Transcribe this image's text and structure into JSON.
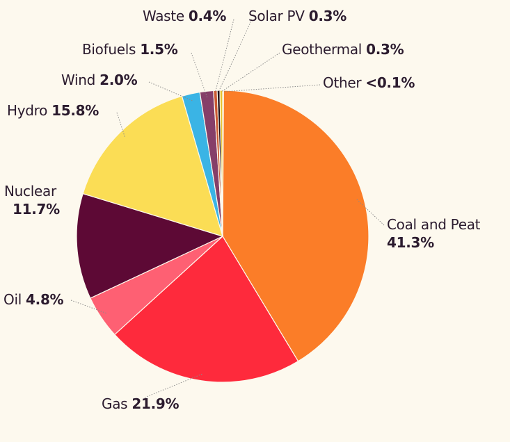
{
  "chart_data": {
    "type": "pie",
    "start_angle_deg": 90,
    "direction": "clockwise",
    "slices": [
      {
        "label": "Other",
        "display": "<0.1%",
        "value": 0.1,
        "color": "#8fd3de"
      },
      {
        "label": "Coal and Peat",
        "display": "41.3%",
        "value": 41.3,
        "color": "#fb7d28"
      },
      {
        "label": "Gas",
        "display": "21.9%",
        "value": 21.9,
        "color": "#fe2a3c"
      },
      {
        "label": "Oil",
        "display": "4.8%",
        "value": 4.8,
        "color": "#fe6073"
      },
      {
        "label": "Nuclear",
        "display": "11.7%",
        "value": 11.7,
        "color": "#5d0935"
      },
      {
        "label": "Hydro",
        "display": "15.8%",
        "value": 15.8,
        "color": "#fbdd55"
      },
      {
        "label": "Wind",
        "display": "2.0%",
        "value": 2.0,
        "color": "#3ab4e5"
      },
      {
        "label": "Biofuels",
        "display": "1.5%",
        "value": 1.5,
        "color": "#863f69"
      },
      {
        "label": "Waste",
        "display": "0.4%",
        "value": 0.4,
        "color": "#cb5a33"
      },
      {
        "label": "Solar PV",
        "display": "0.3%",
        "value": 0.3,
        "color": "#221018"
      },
      {
        "label": "Geothermal",
        "display": "0.3%",
        "value": 0.3,
        "color": "#e6c230"
      }
    ]
  }
}
